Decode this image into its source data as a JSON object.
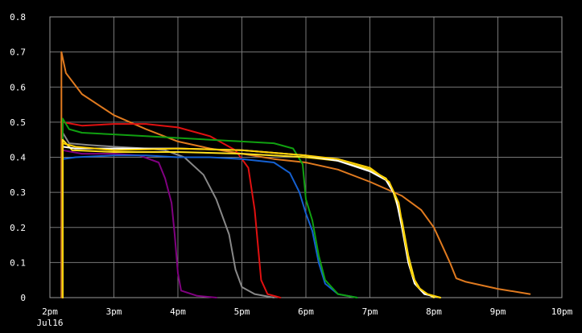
{
  "chart_data": {
    "type": "line",
    "grid": true,
    "xlim": [
      "2pm",
      "10pm"
    ],
    "ylim": [
      0,
      0.8
    ],
    "x_ticks": [
      {
        "label": "2pm",
        "sublabel": "Jul16",
        "hour": 14
      },
      {
        "label": "3pm",
        "hour": 15
      },
      {
        "label": "4pm",
        "hour": 16
      },
      {
        "label": "5pm",
        "hour": 17
      },
      {
        "label": "6pm",
        "hour": 18
      },
      {
        "label": "7pm",
        "hour": 19
      },
      {
        "label": "8pm",
        "hour": 20
      },
      {
        "label": "9pm",
        "hour": 21
      },
      {
        "label": "10pm",
        "hour": 22
      }
    ],
    "y_ticks": [
      "0",
      "0.1",
      "0.2",
      "0.3",
      "0.4",
      "0.5",
      "0.6",
      "0.7",
      "0.8"
    ],
    "series": [
      {
        "color": "#e07a1f",
        "points": [
          [
            14.18,
            0.7
          ],
          [
            14.25,
            0.64
          ],
          [
            14.5,
            0.58
          ],
          [
            15,
            0.52
          ],
          [
            15.5,
            0.48
          ],
          [
            16,
            0.445
          ],
          [
            16.5,
            0.425
          ],
          [
            17,
            0.41
          ],
          [
            17.5,
            0.395
          ],
          [
            18,
            0.385
          ],
          [
            18.5,
            0.365
          ],
          [
            19,
            0.33
          ],
          [
            19.5,
            0.29
          ],
          [
            19.8,
            0.25
          ],
          [
            20,
            0.2
          ],
          [
            20.1,
            0.16
          ],
          [
            20.25,
            0.1
          ],
          [
            20.35,
            0.055
          ],
          [
            20.5,
            0.045
          ],
          [
            21,
            0.025
          ],
          [
            21.5,
            0.01
          ]
        ]
      },
      {
        "color": "#888888",
        "points": [
          [
            14.2,
            0.47
          ],
          [
            14.3,
            0.44
          ],
          [
            14.6,
            0.435
          ],
          [
            15,
            0.43
          ],
          [
            15.5,
            0.425
          ],
          [
            15.8,
            0.42
          ],
          [
            16.1,
            0.4
          ],
          [
            16.4,
            0.35
          ],
          [
            16.6,
            0.28
          ],
          [
            16.8,
            0.18
          ],
          [
            16.9,
            0.08
          ],
          [
            17.0,
            0.03
          ],
          [
            17.2,
            0.01
          ],
          [
            17.5,
            0.0
          ]
        ]
      },
      {
        "color": "#800080",
        "points": [
          [
            14.2,
            0.42
          ],
          [
            14.5,
            0.41
          ],
          [
            15,
            0.41
          ],
          [
            15.4,
            0.405
          ],
          [
            15.7,
            0.385
          ],
          [
            15.8,
            0.34
          ],
          [
            15.9,
            0.27
          ],
          [
            15.95,
            0.18
          ],
          [
            16.0,
            0.07
          ],
          [
            16.05,
            0.02
          ],
          [
            16.3,
            0.005
          ],
          [
            16.6,
            0.0
          ]
        ]
      },
      {
        "color": "#e01010",
        "points": [
          [
            14.2,
            0.5
          ],
          [
            14.5,
            0.49
          ],
          [
            15,
            0.495
          ],
          [
            15.5,
            0.495
          ],
          [
            16,
            0.485
          ],
          [
            16.5,
            0.46
          ],
          [
            16.9,
            0.42
          ],
          [
            17.1,
            0.37
          ],
          [
            17.2,
            0.25
          ],
          [
            17.25,
            0.15
          ],
          [
            17.3,
            0.05
          ],
          [
            17.4,
            0.01
          ],
          [
            17.6,
            0.0
          ]
        ]
      },
      {
        "color": "#1560d0",
        "points": [
          [
            14.2,
            0.395
          ],
          [
            14.4,
            0.4
          ],
          [
            15,
            0.405
          ],
          [
            15.5,
            0.405
          ],
          [
            16,
            0.4
          ],
          [
            16.5,
            0.4
          ],
          [
            17,
            0.395
          ],
          [
            17.5,
            0.385
          ],
          [
            17.75,
            0.355
          ],
          [
            17.9,
            0.3
          ],
          [
            18.0,
            0.24
          ],
          [
            18.1,
            0.19
          ],
          [
            18.2,
            0.1
          ],
          [
            18.3,
            0.04
          ],
          [
            18.5,
            0.01
          ],
          [
            18.8,
            0.0
          ]
        ]
      },
      {
        "color": "#10a010",
        "points": [
          [
            14.2,
            0.51
          ],
          [
            14.3,
            0.48
          ],
          [
            14.5,
            0.47
          ],
          [
            15,
            0.465
          ],
          [
            15.5,
            0.46
          ],
          [
            16,
            0.455
          ],
          [
            16.5,
            0.45
          ],
          [
            17,
            0.445
          ],
          [
            17.5,
            0.44
          ],
          [
            17.8,
            0.425
          ],
          [
            17.95,
            0.38
          ],
          [
            18.0,
            0.28
          ],
          [
            18.1,
            0.22
          ],
          [
            18.2,
            0.12
          ],
          [
            18.3,
            0.05
          ],
          [
            18.5,
            0.01
          ],
          [
            18.8,
            0.0
          ]
        ]
      },
      {
        "color": "#ffe020",
        "points": [
          [
            14.2,
            0.45
          ],
          [
            14.35,
            0.42
          ],
          [
            15,
            0.415
          ],
          [
            16,
            0.415
          ],
          [
            17,
            0.41
          ],
          [
            18,
            0.4
          ],
          [
            18.5,
            0.39
          ],
          [
            19,
            0.365
          ],
          [
            19.25,
            0.34
          ],
          [
            19.35,
            0.31
          ],
          [
            19.5,
            0.22
          ],
          [
            19.6,
            0.12
          ],
          [
            19.7,
            0.05
          ],
          [
            19.8,
            0.02
          ],
          [
            20.0,
            0.0
          ]
        ]
      },
      {
        "color": "#ffffff",
        "points": [
          [
            14.2,
            0.43
          ],
          [
            14.4,
            0.425
          ],
          [
            15,
            0.425
          ],
          [
            16,
            0.425
          ],
          [
            17,
            0.42
          ],
          [
            18,
            0.405
          ],
          [
            18.5,
            0.39
          ],
          [
            19,
            0.36
          ],
          [
            19.25,
            0.335
          ],
          [
            19.4,
            0.29
          ],
          [
            19.5,
            0.2
          ],
          [
            19.6,
            0.1
          ],
          [
            19.7,
            0.04
          ],
          [
            19.85,
            0.01
          ],
          [
            20.1,
            0.0
          ]
        ]
      },
      {
        "color": "#ffd000",
        "points": [
          [
            14.2,
            0.44
          ],
          [
            14.4,
            0.43
          ],
          [
            15,
            0.42
          ],
          [
            16,
            0.425
          ],
          [
            17,
            0.42
          ],
          [
            18,
            0.405
          ],
          [
            18.5,
            0.395
          ],
          [
            19,
            0.37
          ],
          [
            19.3,
            0.33
          ],
          [
            19.45,
            0.27
          ],
          [
            19.55,
            0.16
          ],
          [
            19.65,
            0.07
          ],
          [
            19.75,
            0.03
          ],
          [
            19.9,
            0.01
          ],
          [
            20.1,
            0.0
          ]
        ]
      }
    ]
  }
}
